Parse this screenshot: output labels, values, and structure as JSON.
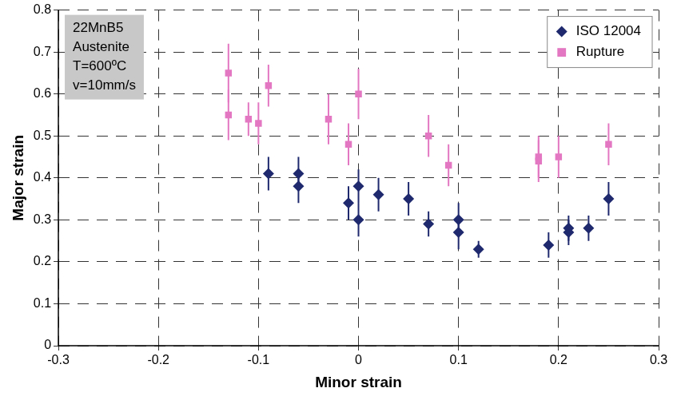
{
  "chart_data": {
    "type": "scatter",
    "annotation": [
      "22MnB5",
      "Austenite",
      "T=600ºC",
      "v=10mm/s"
    ],
    "x_label": "Minor strain",
    "y_label": "Major strain",
    "xlim": [
      -0.3,
      0.3
    ],
    "xticks": [
      -0.3,
      -0.2,
      -0.1,
      0,
      0.1,
      0.2,
      0.3
    ],
    "ylim": [
      0,
      0.8
    ],
    "yticks": [
      0,
      0.1,
      0.2,
      0.3,
      0.4,
      0.5,
      0.6,
      0.7,
      0.8
    ],
    "grid": true,
    "legend": "top-right",
    "series": [
      {
        "name": "ISO 12004",
        "color": "#1f2a6e",
        "marker": "diamond",
        "x": [
          -0.09,
          -0.06,
          -0.06,
          -0.01,
          0,
          0,
          0.02,
          0.05,
          0.07,
          0.1,
          0.1,
          0.12,
          0.19,
          0.21,
          0.21,
          0.23,
          0.25
        ],
        "values": [
          0.41,
          0.41,
          0.38,
          0.34,
          0.38,
          0.3,
          0.36,
          0.35,
          0.29,
          0.3,
          0.27,
          0.23,
          0.24,
          0.27,
          0.28,
          0.28,
          0.35
        ],
        "errors": [
          0.04,
          0.04,
          0.04,
          0.04,
          0.04,
          0.04,
          0.04,
          0.04,
          0.03,
          0.04,
          0.04,
          0.02,
          0.03,
          0.03,
          0.03,
          0.03,
          0.04
        ]
      },
      {
        "name": "Rupture",
        "color": "#e377c2",
        "marker": "square",
        "x": [
          -0.13,
          -0.13,
          -0.11,
          -0.1,
          -0.09,
          -0.03,
          -0.01,
          0,
          0.07,
          0.09,
          0.18,
          0.18,
          0.2,
          0.25
        ],
        "values": [
          0.65,
          0.55,
          0.54,
          0.53,
          0.62,
          0.54,
          0.48,
          0.6,
          0.5,
          0.43,
          0.45,
          0.44,
          0.45,
          0.48
        ],
        "errors": [
          0.07,
          0.06,
          0.04,
          0.05,
          0.05,
          0.06,
          0.05,
          0.06,
          0.05,
          0.05,
          0.05,
          0.05,
          0.05,
          0.05
        ]
      }
    ]
  }
}
